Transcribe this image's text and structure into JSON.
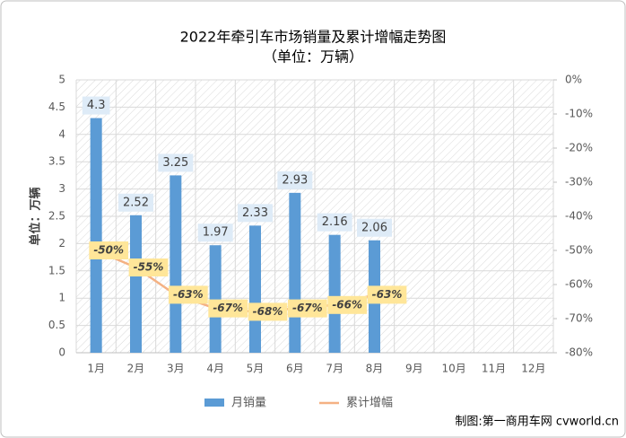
{
  "chart_data": {
    "type": "bar-line",
    "title": "2022年牵引车市场销量及累计增幅走势图",
    "subtitle": "（单位：万辆）",
    "ylabel": "单位：万辆",
    "source": "制图:第一商用车网 cvworld.cn",
    "categories": [
      "1月",
      "2月",
      "3月",
      "4月",
      "5月",
      "6月",
      "7月",
      "8月",
      "9月",
      "10月",
      "11月",
      "12月"
    ],
    "series": [
      {
        "name": "月销量",
        "type": "bar",
        "color": "#5b9bd5",
        "values": [
          4.3,
          2.52,
          3.25,
          1.97,
          2.33,
          2.93,
          2.16,
          2.06,
          null,
          null,
          null,
          null
        ]
      },
      {
        "name": "累计增幅",
        "type": "line",
        "axis": "y2",
        "color": "#f4b183",
        "values": [
          -50,
          -55,
          -63,
          -67,
          -68,
          -67,
          -66,
          -63,
          null,
          null,
          null,
          null
        ],
        "value_labels": [
          "-50%",
          "-55%",
          "-63%",
          "-67%",
          "-68%",
          "-67%",
          "-66%",
          "-63%",
          null,
          null,
          null,
          null
        ]
      }
    ],
    "ylim": [
      0,
      5
    ],
    "yticks": [
      0,
      0.5,
      1,
      1.5,
      2,
      2.5,
      3,
      3.5,
      4,
      4.5,
      5
    ],
    "y2lim": [
      -80,
      0
    ],
    "y2ticks": [
      {
        "value": -80,
        "label": "-80%"
      },
      {
        "value": -70,
        "label": "-70%"
      },
      {
        "value": -60,
        "label": "-60%"
      },
      {
        "value": -50,
        "label": "-50%"
      },
      {
        "value": -40,
        "label": "-40%"
      },
      {
        "value": -30,
        "label": "-30%"
      },
      {
        "value": -20,
        "label": "-20%"
      },
      {
        "value": -10,
        "label": "-10%"
      },
      {
        "value": 0,
        "label": "0%"
      }
    ],
    "grid": true,
    "legend": "bottom"
  }
}
